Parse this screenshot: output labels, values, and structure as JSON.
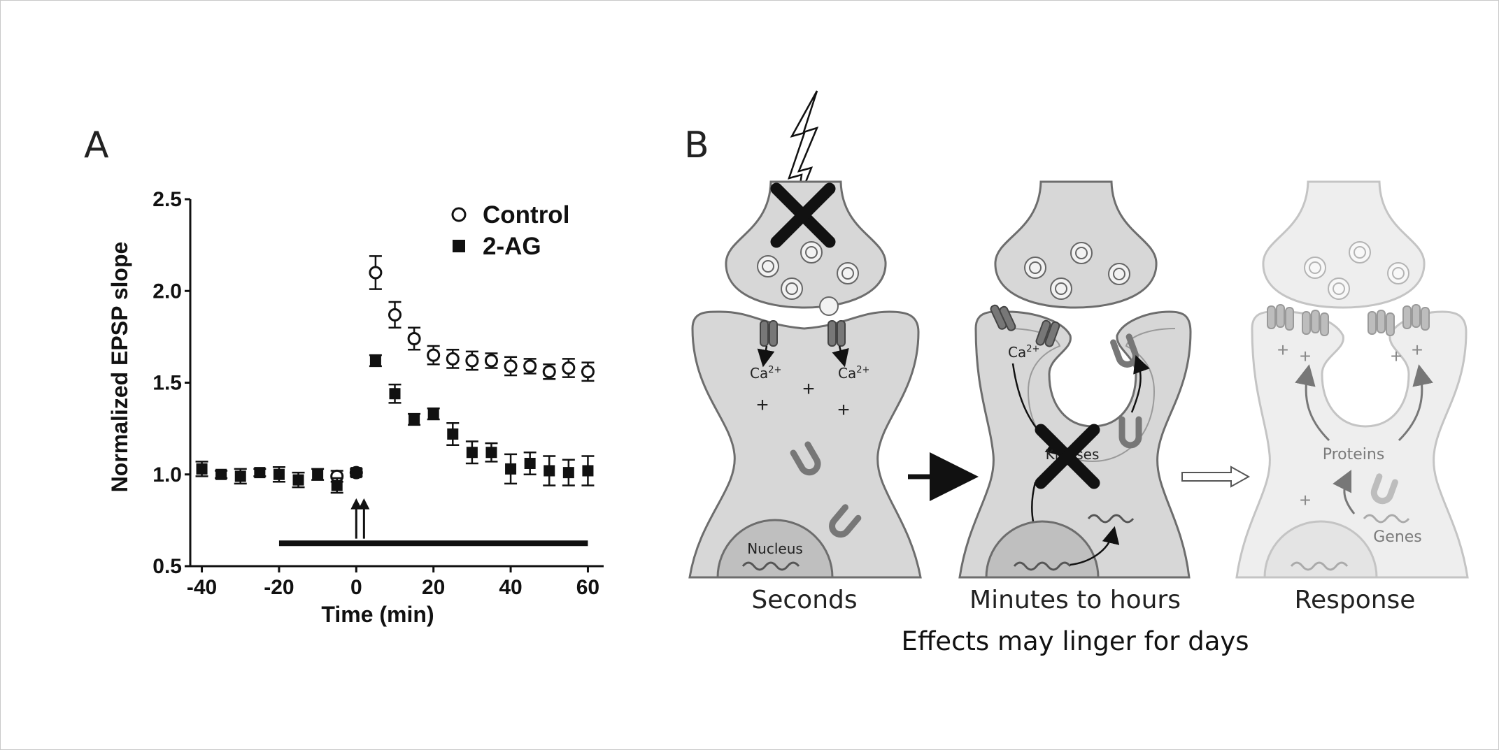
{
  "panel_a": {
    "letter": "A",
    "legend": {
      "control": "Control",
      "treatment": "2-AG"
    },
    "chart_data": {
      "type": "scatter",
      "title": "",
      "xlabel": "Time (min)",
      "ylabel": "Normalized EPSP slope",
      "xlim": [
        -43,
        63
      ],
      "ylim": [
        0.5,
        2.5
      ],
      "xticks": [
        -40,
        -20,
        0,
        20,
        40,
        60
      ],
      "yticks": [
        0.5,
        1.0,
        1.5,
        2.0,
        2.5
      ],
      "xtick_labels": [
        "-40",
        "-20",
        "0",
        "20",
        "40",
        "60"
      ],
      "ytick_labels": [
        "0.5",
        "1.0",
        "1.5",
        "2.0",
        "2.5"
      ],
      "legend_position": "top-right",
      "series": [
        {
          "name": "Control",
          "marker": "open-circle",
          "x": [
            -5,
            0,
            5,
            10,
            15,
            20,
            25,
            30,
            35,
            40,
            45,
            50,
            55,
            60
          ],
          "y": [
            0.99,
            1.01,
            2.1,
            1.87,
            1.74,
            1.65,
            1.63,
            1.62,
            1.62,
            1.59,
            1.59,
            1.56,
            1.58,
            1.56
          ],
          "err": [
            0.03,
            0.02,
            0.09,
            0.07,
            0.06,
            0.05,
            0.05,
            0.05,
            0.04,
            0.05,
            0.04,
            0.04,
            0.05,
            0.05
          ]
        },
        {
          "name": "2-AG",
          "marker": "filled-square",
          "x": [
            -40,
            -35,
            -30,
            -25,
            -20,
            -15,
            -10,
            -5,
            0,
            5,
            10,
            15,
            20,
            25,
            30,
            35,
            40,
            45,
            50,
            55,
            60
          ],
          "y": [
            1.03,
            1.0,
            0.99,
            1.01,
            1.0,
            0.97,
            1.0,
            0.94,
            1.01,
            1.62,
            1.44,
            1.3,
            1.33,
            1.22,
            1.12,
            1.12,
            1.03,
            1.06,
            1.02,
            1.01,
            1.02
          ],
          "err": [
            0.04,
            0.02,
            0.04,
            0.02,
            0.04,
            0.04,
            0.03,
            0.04,
            0.02,
            0.03,
            0.05,
            0.03,
            0.03,
            0.06,
            0.06,
            0.05,
            0.08,
            0.06,
            0.08,
            0.07,
            0.08
          ]
        }
      ],
      "annotations": [
        {
          "type": "drug-application-bar",
          "x_start": -20,
          "x_end": 60
        },
        {
          "type": "stimulus-arrows",
          "x": [
            0,
            2
          ]
        }
      ]
    }
  },
  "panel_b": {
    "letter": "B",
    "stages": [
      {
        "label": "Seconds"
      },
      {
        "label": "Minutes to hours"
      },
      {
        "label": "Response"
      }
    ],
    "labels": {
      "ca_ion": "Ca",
      "ca_superscript": "2+",
      "nucleus": "Nucleus",
      "kinases": "Kinases",
      "proteins": "Proteins",
      "genes": "Genes",
      "plus": "+"
    },
    "caption": "Effects may linger for days",
    "colors": {
      "cell_fill": "#d7d7d7",
      "cell_stroke": "#6d6d6d",
      "faded_fill": "#eeeeee",
      "faded_stroke": "#c4c4c4"
    }
  }
}
